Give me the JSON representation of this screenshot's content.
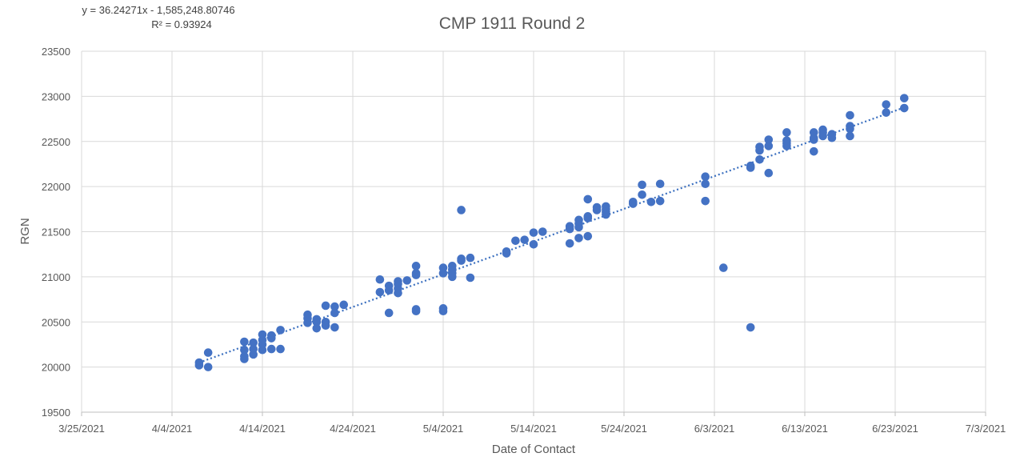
{
  "chart_data": {
    "type": "scatter",
    "title": "CMP 1911 Round 2",
    "xlabel": "Date of Contact",
    "ylabel": "RGN",
    "xlim": [
      "3/25/2021",
      "7/3/2021"
    ],
    "ylim": [
      19500,
      23500
    ],
    "x_ticks": [
      "3/25/2021",
      "4/4/2021",
      "4/14/2021",
      "4/24/2021",
      "5/4/2021",
      "5/14/2021",
      "5/24/2021",
      "6/3/2021",
      "6/13/2021",
      "6/23/2021",
      "7/3/2021"
    ],
    "y_ticks": [
      19500,
      20000,
      20500,
      21000,
      21500,
      22000,
      22500,
      23000,
      23500
    ],
    "grid": true,
    "legend": "none",
    "point_color": "#4472C4",
    "trendline": {
      "type": "linear",
      "equation": "y = 36.24271x - 1,585,248.80746",
      "r_squared": "R² = 0.93924",
      "slope": 36.24271,
      "intercept": -1585248.80746
    },
    "points": [
      {
        "x": "4/7/2021",
        "y": 20050
      },
      {
        "x": "4/7/2021",
        "y": 20020
      },
      {
        "x": "4/8/2021",
        "y": 20160
      },
      {
        "x": "4/8/2021",
        "y": 20000
      },
      {
        "x": "4/12/2021",
        "y": 20280
      },
      {
        "x": "4/12/2021",
        "y": 20190
      },
      {
        "x": "4/12/2021",
        "y": 20120
      },
      {
        "x": "4/12/2021",
        "y": 20090
      },
      {
        "x": "4/13/2021",
        "y": 20270
      },
      {
        "x": "4/13/2021",
        "y": 20200
      },
      {
        "x": "4/13/2021",
        "y": 20140
      },
      {
        "x": "4/14/2021",
        "y": 20360
      },
      {
        "x": "4/14/2021",
        "y": 20300
      },
      {
        "x": "4/14/2021",
        "y": 20250
      },
      {
        "x": "4/14/2021",
        "y": 20190
      },
      {
        "x": "4/15/2021",
        "y": 20350
      },
      {
        "x": "4/15/2021",
        "y": 20320
      },
      {
        "x": "4/15/2021",
        "y": 20200
      },
      {
        "x": "4/16/2021",
        "y": 20410
      },
      {
        "x": "4/16/2021",
        "y": 20200
      },
      {
        "x": "4/19/2021",
        "y": 20580
      },
      {
        "x": "4/19/2021",
        "y": 20540
      },
      {
        "x": "4/19/2021",
        "y": 20490
      },
      {
        "x": "4/20/2021",
        "y": 20530
      },
      {
        "x": "4/20/2021",
        "y": 20500
      },
      {
        "x": "4/20/2021",
        "y": 20430
      },
      {
        "x": "4/21/2021",
        "y": 20680
      },
      {
        "x": "4/21/2021",
        "y": 20500
      },
      {
        "x": "4/21/2021",
        "y": 20460
      },
      {
        "x": "4/22/2021",
        "y": 20670
      },
      {
        "x": "4/22/2021",
        "y": 20600
      },
      {
        "x": "4/22/2021",
        "y": 20440
      },
      {
        "x": "4/23/2021",
        "y": 20690
      },
      {
        "x": "4/27/2021",
        "y": 20970
      },
      {
        "x": "4/27/2021",
        "y": 20830
      },
      {
        "x": "4/28/2021",
        "y": 20900
      },
      {
        "x": "4/28/2021",
        "y": 20850
      },
      {
        "x": "4/28/2021",
        "y": 20600
      },
      {
        "x": "4/29/2021",
        "y": 20950
      },
      {
        "x": "4/29/2021",
        "y": 20920
      },
      {
        "x": "4/29/2021",
        "y": 20870
      },
      {
        "x": "4/29/2021",
        "y": 20820
      },
      {
        "x": "4/30/2021",
        "y": 20960
      },
      {
        "x": "5/1/2021",
        "y": 21120
      },
      {
        "x": "5/1/2021",
        "y": 21040
      },
      {
        "x": "5/1/2021",
        "y": 21020
      },
      {
        "x": "5/1/2021",
        "y": 20640
      },
      {
        "x": "5/1/2021",
        "y": 20620
      },
      {
        "x": "5/4/2021",
        "y": 21100
      },
      {
        "x": "5/4/2021",
        "y": 21040
      },
      {
        "x": "5/4/2021",
        "y": 20650
      },
      {
        "x": "5/4/2021",
        "y": 20620
      },
      {
        "x": "5/5/2021",
        "y": 21120
      },
      {
        "x": "5/5/2021",
        "y": 21080
      },
      {
        "x": "5/5/2021",
        "y": 21040
      },
      {
        "x": "5/5/2021",
        "y": 21000
      },
      {
        "x": "5/6/2021",
        "y": 21740
      },
      {
        "x": "5/6/2021",
        "y": 21200
      },
      {
        "x": "5/6/2021",
        "y": 21180
      },
      {
        "x": "5/7/2021",
        "y": 21210
      },
      {
        "x": "5/7/2021",
        "y": 20990
      },
      {
        "x": "5/11/2021",
        "y": 21280
      },
      {
        "x": "5/11/2021",
        "y": 21260
      },
      {
        "x": "5/12/2021",
        "y": 21400
      },
      {
        "x": "5/13/2021",
        "y": 21410
      },
      {
        "x": "5/14/2021",
        "y": 21490
      },
      {
        "x": "5/14/2021",
        "y": 21360
      },
      {
        "x": "5/15/2021",
        "y": 21500
      },
      {
        "x": "5/18/2021",
        "y": 21560
      },
      {
        "x": "5/18/2021",
        "y": 21530
      },
      {
        "x": "5/18/2021",
        "y": 21370
      },
      {
        "x": "5/19/2021",
        "y": 21630
      },
      {
        "x": "5/19/2021",
        "y": 21590
      },
      {
        "x": "5/19/2021",
        "y": 21550
      },
      {
        "x": "5/19/2021",
        "y": 21430
      },
      {
        "x": "5/20/2021",
        "y": 21860
      },
      {
        "x": "5/20/2021",
        "y": 21670
      },
      {
        "x": "5/20/2021",
        "y": 21650
      },
      {
        "x": "5/20/2021",
        "y": 21450
      },
      {
        "x": "5/21/2021",
        "y": 21770
      },
      {
        "x": "5/21/2021",
        "y": 21740
      },
      {
        "x": "5/22/2021",
        "y": 21780
      },
      {
        "x": "5/22/2021",
        "y": 21750
      },
      {
        "x": "5/22/2021",
        "y": 21720
      },
      {
        "x": "5/22/2021",
        "y": 21690
      },
      {
        "x": "5/25/2021",
        "y": 21830
      },
      {
        "x": "5/25/2021",
        "y": 21810
      },
      {
        "x": "5/26/2021",
        "y": 22020
      },
      {
        "x": "5/26/2021",
        "y": 21910
      },
      {
        "x": "5/27/2021",
        "y": 21830
      },
      {
        "x": "5/28/2021",
        "y": 22030
      },
      {
        "x": "5/28/2021",
        "y": 21840
      },
      {
        "x": "6/2/2021",
        "y": 22110
      },
      {
        "x": "6/2/2021",
        "y": 22030
      },
      {
        "x": "6/2/2021",
        "y": 21840
      },
      {
        "x": "6/4/2021",
        "y": 21100
      },
      {
        "x": "6/7/2021",
        "y": 22230
      },
      {
        "x": "6/7/2021",
        "y": 22210
      },
      {
        "x": "6/7/2021",
        "y": 20440
      },
      {
        "x": "6/8/2021",
        "y": 22440
      },
      {
        "x": "6/8/2021",
        "y": 22400
      },
      {
        "x": "6/8/2021",
        "y": 22300
      },
      {
        "x": "6/9/2021",
        "y": 22520
      },
      {
        "x": "6/9/2021",
        "y": 22450
      },
      {
        "x": "6/9/2021",
        "y": 22150
      },
      {
        "x": "6/11/2021",
        "y": 22600
      },
      {
        "x": "6/11/2021",
        "y": 22510
      },
      {
        "x": "6/11/2021",
        "y": 22480
      },
      {
        "x": "6/11/2021",
        "y": 22450
      },
      {
        "x": "6/14/2021",
        "y": 22600
      },
      {
        "x": "6/14/2021",
        "y": 22540
      },
      {
        "x": "6/14/2021",
        "y": 22520
      },
      {
        "x": "6/14/2021",
        "y": 22390
      },
      {
        "x": "6/15/2021",
        "y": 22630
      },
      {
        "x": "6/15/2021",
        "y": 22600
      },
      {
        "x": "6/15/2021",
        "y": 22560
      },
      {
        "x": "6/16/2021",
        "y": 22580
      },
      {
        "x": "6/16/2021",
        "y": 22540
      },
      {
        "x": "6/18/2021",
        "y": 22790
      },
      {
        "x": "6/18/2021",
        "y": 22670
      },
      {
        "x": "6/18/2021",
        "y": 22640
      },
      {
        "x": "6/18/2021",
        "y": 22560
      },
      {
        "x": "6/22/2021",
        "y": 22910
      },
      {
        "x": "6/22/2021",
        "y": 22820
      },
      {
        "x": "6/24/2021",
        "y": 22980
      },
      {
        "x": "6/24/2021",
        "y": 22870
      }
    ]
  }
}
